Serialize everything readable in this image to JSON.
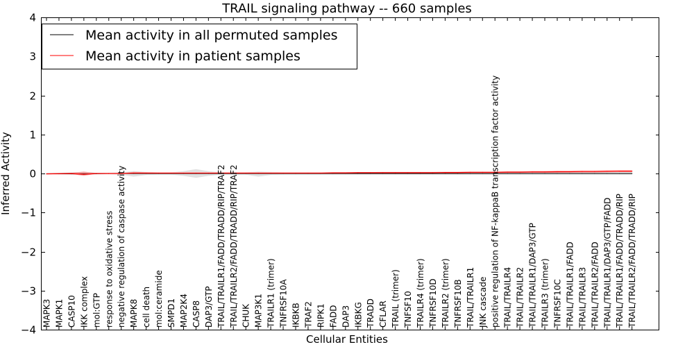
{
  "chart_data": {
    "type": "line",
    "title": "TRAIL signaling pathway -- 660 samples",
    "xlabel": "Cellular Entities",
    "ylabel": "Inferred Activity",
    "ylim": [
      -4,
      4
    ],
    "yticks": [
      -4,
      -3,
      -2,
      -1,
      0,
      1,
      2,
      3,
      4
    ],
    "ytick_labels": [
      "−4",
      "−3",
      "−2",
      "−1",
      "0",
      "1",
      "2",
      "3",
      "4"
    ],
    "legend_position": "top-left",
    "categories": [
      "MAPK3",
      "MAPK1",
      "CASP10",
      "IKK complex",
      "mol:GTP",
      "response to oxidative stress",
      "negative regulation of caspase activity",
      "MAPK8",
      "cell death",
      "mol:ceramide",
      "SMPD1",
      "MAP2K4",
      "CASP8",
      "DAP3/GTP",
      "TRAIL/TRAILR1/FADD/TRADD/RIP/TRAF2",
      "TRAIL/TRAILR2/FADD/TRADD/RIP/TRAF2",
      "CHUK",
      "MAP3K1",
      "TRAILR1 (trimer)",
      "TNFRSF10A",
      "IKBKB",
      "TRAF2",
      "RIPK1",
      "FADD",
      "DAP3",
      "IKBKG",
      "TRADD",
      "CFLAR",
      "TRAIL (trimer)",
      "TNFSF10",
      "TRAILR4 (trimer)",
      "TNFRSF10D",
      "TRAILR2 (trimer)",
      "TNFRSF10B",
      "TRAIL/TRAILR1",
      "JNK cascade",
      "positive regulation of NF-kappaB transcription factor activity",
      "TRAIL/TRAILR4",
      "TRAIL/TRAILR2",
      "TRAIL/TRAILR1/DAP3/GTP",
      "TRAILR3 (trimer)",
      "TNFRSF10C",
      "TRAIL/TRAILR1/FADD",
      "TRAIL/TRAILR3",
      "TRAIL/TRAILR2/FADD",
      "TRAIL/TRAILR1/DAP3/GTP/FADD",
      "TRAIL/TRAILR1/FADD/TRADD/RIP",
      "TRAIL/TRAILR2/FADD/TRADD/RIP"
    ],
    "series": [
      {
        "name": "Mean activity in all permuted samples",
        "color": "#000000",
        "values": [
          -0.01,
          -0.01,
          -0.01,
          -0.01,
          -0.005,
          0,
          0,
          0,
          0,
          0,
          0,
          0,
          0,
          0,
          0,
          0,
          0,
          0,
          0,
          0,
          0,
          0,
          0,
          0,
          0,
          0,
          0,
          0,
          0,
          0,
          0,
          0,
          0,
          0,
          0,
          0,
          0,
          0,
          0,
          0,
          0,
          0,
          0,
          0,
          0,
          0,
          0,
          0
        ],
        "band_lower": [
          -0.02,
          -0.02,
          -0.03,
          -0.04,
          -0.02,
          -0.02,
          -0.03,
          -0.08,
          -0.04,
          -0.03,
          -0.03,
          -0.06,
          -0.11,
          -0.06,
          -0.03,
          -0.03,
          -0.03,
          -0.08,
          -0.04,
          -0.03,
          -0.03,
          -0.03,
          -0.03,
          -0.03,
          -0.03,
          -0.03,
          -0.03,
          -0.03,
          -0.03,
          -0.03,
          -0.03,
          -0.03,
          -0.03,
          -0.03,
          -0.03,
          -0.03,
          -0.03,
          -0.03,
          -0.03,
          -0.03,
          -0.03,
          -0.03,
          -0.03,
          -0.03,
          -0.03,
          -0.03,
          -0.03,
          -0.03
        ],
        "band_upper": [
          0.02,
          0.02,
          0.03,
          0.04,
          0.02,
          0.02,
          0.03,
          0.06,
          0.04,
          0.03,
          0.03,
          0.06,
          0.11,
          0.06,
          0.03,
          0.03,
          0.03,
          0.05,
          0.04,
          0.03,
          0.03,
          0.03,
          0.03,
          0.03,
          0.03,
          0.03,
          0.03,
          0.03,
          0.03,
          0.03,
          0.03,
          0.03,
          0.03,
          0.03,
          0.03,
          0.03,
          0.03,
          0.03,
          0.03,
          0.03,
          0.03,
          0.03,
          0.03,
          0.03,
          0.03,
          0.03,
          0.03,
          0.03
        ]
      },
      {
        "name": "Mean activity in patient samples",
        "color": "#ff0000",
        "values": [
          -0.01,
          -0.005,
          0,
          -0.02,
          0,
          0,
          0,
          0.01,
          0.01,
          0.01,
          0.01,
          0.01,
          0.01,
          0.01,
          0.01,
          0.01,
          0.01,
          0.01,
          0.01,
          0.01,
          0.01,
          0.01,
          0.01,
          0.015,
          0.015,
          0.02,
          0.02,
          0.02,
          0.02,
          0.02,
          0.02,
          0.02,
          0.025,
          0.025,
          0.03,
          0.03,
          0.03,
          0.035,
          0.035,
          0.04,
          0.04,
          0.045,
          0.045,
          0.05,
          0.05,
          0.055,
          0.06,
          0.06
        ],
        "band_lower": [
          -0.025,
          -0.02,
          -0.015,
          -0.06,
          -0.01,
          -0.01,
          -0.01,
          -0.01,
          -0.005,
          -0.005,
          -0.005,
          -0.005,
          -0.005,
          -0.005,
          -0.005,
          -0.005,
          -0.005,
          -0.005,
          -0.005,
          -0.005,
          -0.005,
          -0.005,
          -0.005,
          -0.003,
          0,
          0,
          0,
          0,
          0,
          0,
          0.005,
          0.005,
          0.005,
          0.005,
          0.01,
          0.01,
          0.01,
          0.015,
          0.015,
          0.02,
          0.02,
          0.02,
          0.025,
          0.025,
          0.025,
          0.03,
          0.035,
          0.035
        ],
        "band_upper": [
          0.005,
          0.01,
          0.015,
          0.05,
          0.01,
          0.01,
          0.01,
          0.04,
          0.03,
          0.025,
          0.025,
          0.025,
          0.025,
          0.025,
          0.025,
          0.025,
          0.025,
          0.025,
          0.025,
          0.025,
          0.025,
          0.025,
          0.025,
          0.03,
          0.03,
          0.035,
          0.035,
          0.04,
          0.04,
          0.04,
          0.04,
          0.04,
          0.045,
          0.045,
          0.05,
          0.05,
          0.05,
          0.055,
          0.055,
          0.065,
          0.065,
          0.07,
          0.07,
          0.075,
          0.075,
          0.08,
          0.085,
          0.085
        ]
      }
    ]
  }
}
